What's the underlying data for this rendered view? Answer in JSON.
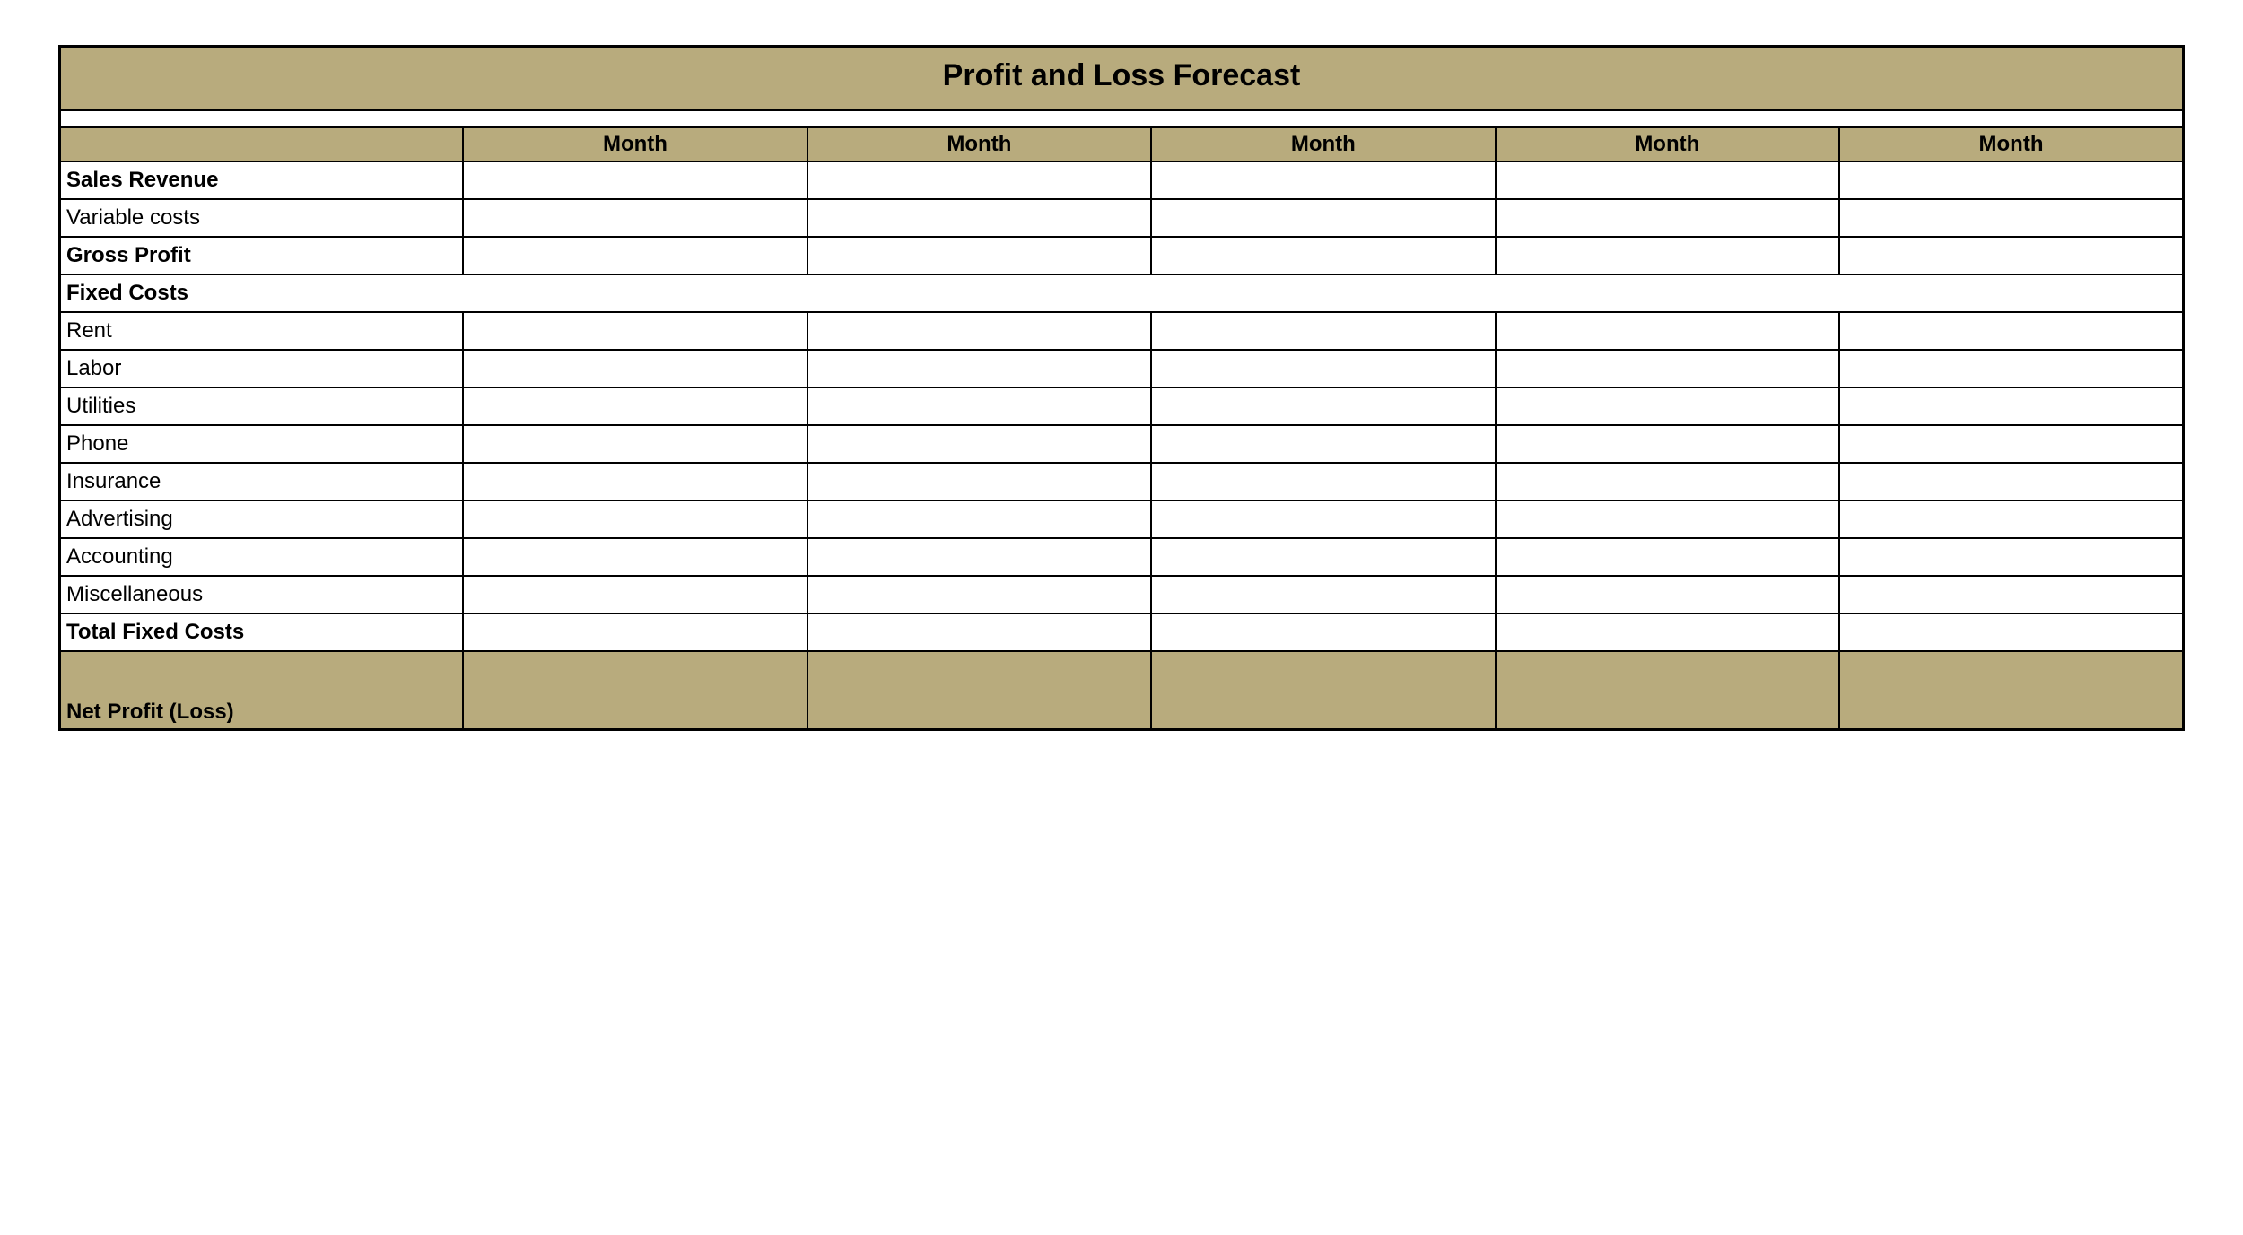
{
  "table": {
    "title": "Profit and Loss Forecast",
    "header_color": "#b8ab7d",
    "border_color": "#000000",
    "background_color": "#ffffff",
    "text_color": "#000000",
    "title_fontsize": 34,
    "label_fontsize": 24,
    "columns": [
      "",
      "Month",
      "Month",
      "Month",
      "Month",
      "Month"
    ],
    "column_widths_pct": [
      19,
      16.2,
      16.2,
      16.2,
      16.2,
      16.2
    ],
    "rows": [
      {
        "label": "Sales Revenue",
        "bold": true,
        "spans_all": false,
        "values": [
          "",
          "",
          "",
          "",
          ""
        ]
      },
      {
        "label": "Variable costs",
        "bold": false,
        "spans_all": false,
        "values": [
          "",
          "",
          "",
          "",
          ""
        ]
      },
      {
        "label": "Gross Profit",
        "bold": true,
        "spans_all": false,
        "values": [
          "",
          "",
          "",
          "",
          ""
        ]
      },
      {
        "label": "Fixed Costs",
        "bold": true,
        "spans_all": true
      },
      {
        "label": "Rent",
        "bold": false,
        "spans_all": false,
        "values": [
          "",
          "",
          "",
          "",
          ""
        ]
      },
      {
        "label": "Labor",
        "bold": false,
        "spans_all": false,
        "values": [
          "",
          "",
          "",
          "",
          ""
        ]
      },
      {
        "label": "Utilities",
        "bold": false,
        "spans_all": false,
        "values": [
          "",
          "",
          "",
          "",
          ""
        ]
      },
      {
        "label": "Phone",
        "bold": false,
        "spans_all": false,
        "values": [
          "",
          "",
          "",
          "",
          ""
        ]
      },
      {
        "label": "Insurance",
        "bold": false,
        "spans_all": false,
        "values": [
          "",
          "",
          "",
          "",
          ""
        ]
      },
      {
        "label": "Advertising",
        "bold": false,
        "spans_all": false,
        "values": [
          "",
          "",
          "",
          "",
          ""
        ]
      },
      {
        "label": "Accounting",
        "bold": false,
        "spans_all": false,
        "values": [
          "",
          "",
          "",
          "",
          ""
        ]
      },
      {
        "label": "Miscellaneous",
        "bold": false,
        "spans_all": false,
        "values": [
          "",
          "",
          "",
          "",
          ""
        ]
      },
      {
        "label": "Total Fixed Costs",
        "bold": true,
        "spans_all": false,
        "values": [
          "",
          "",
          "",
          "",
          ""
        ]
      }
    ],
    "net_row": {
      "label": "Net Profit (Loss)",
      "values": [
        "",
        "",
        "",
        "",
        ""
      ]
    }
  }
}
